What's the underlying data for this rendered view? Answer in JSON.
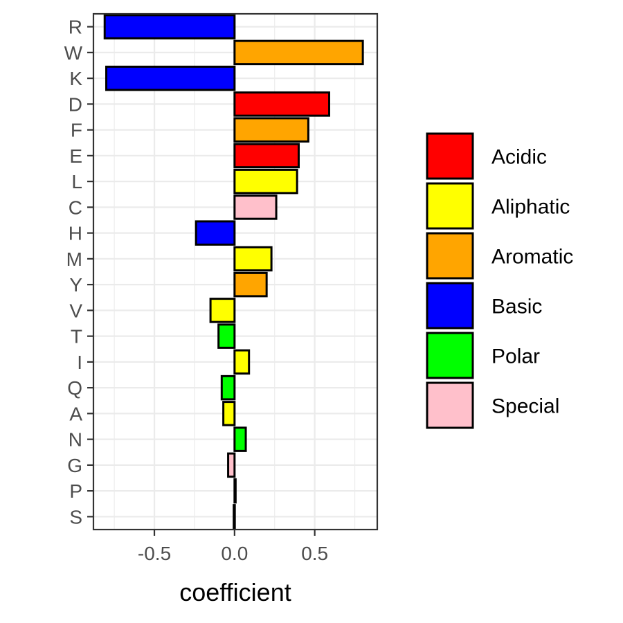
{
  "chart_data": {
    "type": "bar",
    "orientation": "horizontal",
    "title": "",
    "xlabel": "coefficient",
    "ylabel": "",
    "xlim": [
      -0.88,
      0.89
    ],
    "x_ticks": [
      -0.5,
      0.0,
      0.5
    ],
    "x_tick_labels": [
      "-0.5",
      "0.0",
      "0.5"
    ],
    "grid": true,
    "legend_position": "right",
    "categories": [
      "R",
      "W",
      "K",
      "D",
      "F",
      "E",
      "L",
      "C",
      "H",
      "M",
      "Y",
      "V",
      "T",
      "I",
      "Q",
      "A",
      "N",
      "G",
      "P",
      "S"
    ],
    "values": [
      -0.81,
      0.8,
      -0.8,
      0.59,
      0.46,
      0.4,
      0.39,
      0.26,
      -0.24,
      0.23,
      0.2,
      -0.15,
      -0.1,
      0.09,
      -0.08,
      -0.07,
      0.07,
      -0.04,
      0.005,
      -0.005
    ],
    "groups": [
      "Basic",
      "Aromatic",
      "Basic",
      "Acidic",
      "Aromatic",
      "Acidic",
      "Aliphatic",
      "Special",
      "Basic",
      "Aliphatic",
      "Aromatic",
      "Aliphatic",
      "Polar",
      "Aliphatic",
      "Polar",
      "Aliphatic",
      "Polar",
      "Special",
      "Special",
      "Polar"
    ],
    "legend": [
      {
        "name": "Acidic",
        "color": "#ff0000"
      },
      {
        "name": "Aliphatic",
        "color": "#ffff00"
      },
      {
        "name": "Aromatic",
        "color": "#ffa500"
      },
      {
        "name": "Basic",
        "color": "#0000ff"
      },
      {
        "name": "Polar",
        "color": "#00ff00"
      },
      {
        "name": "Special",
        "color": "#ffc0cb"
      }
    ]
  }
}
